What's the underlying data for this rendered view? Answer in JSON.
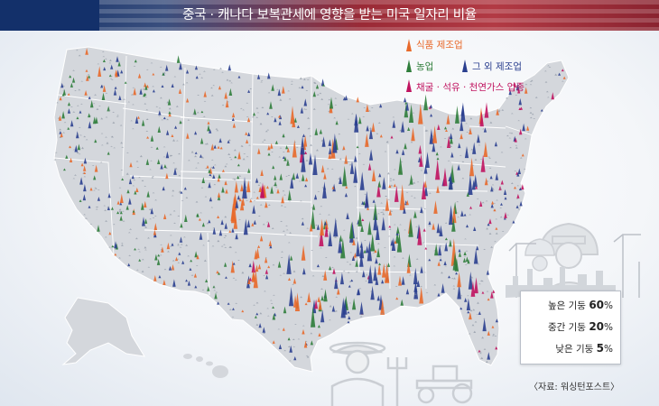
{
  "title": "중국 · 캐나다 보복관세에 영향을 받는 미국 일자리 비율",
  "legend": [
    {
      "label": "식품 제조업",
      "color": "#e8692a"
    },
    {
      "label": "농업",
      "color": "#2e7d3a"
    },
    {
      "label": "그 외 제조업",
      "color": "#2a3f8f"
    },
    {
      "label": "채굴 · 석유 · 천연가스 업종",
      "color": "#c0135f"
    }
  ],
  "scale": [
    {
      "prefix": "높은 기둥",
      "value": "60",
      "unit": "%"
    },
    {
      "prefix": "중간 기둥",
      "value": "20",
      "unit": "%"
    },
    {
      "prefix": "낮은 기둥",
      "value": "5",
      "unit": "%"
    }
  ],
  "source": "〈자료: 워싱턴포스트〉"
}
